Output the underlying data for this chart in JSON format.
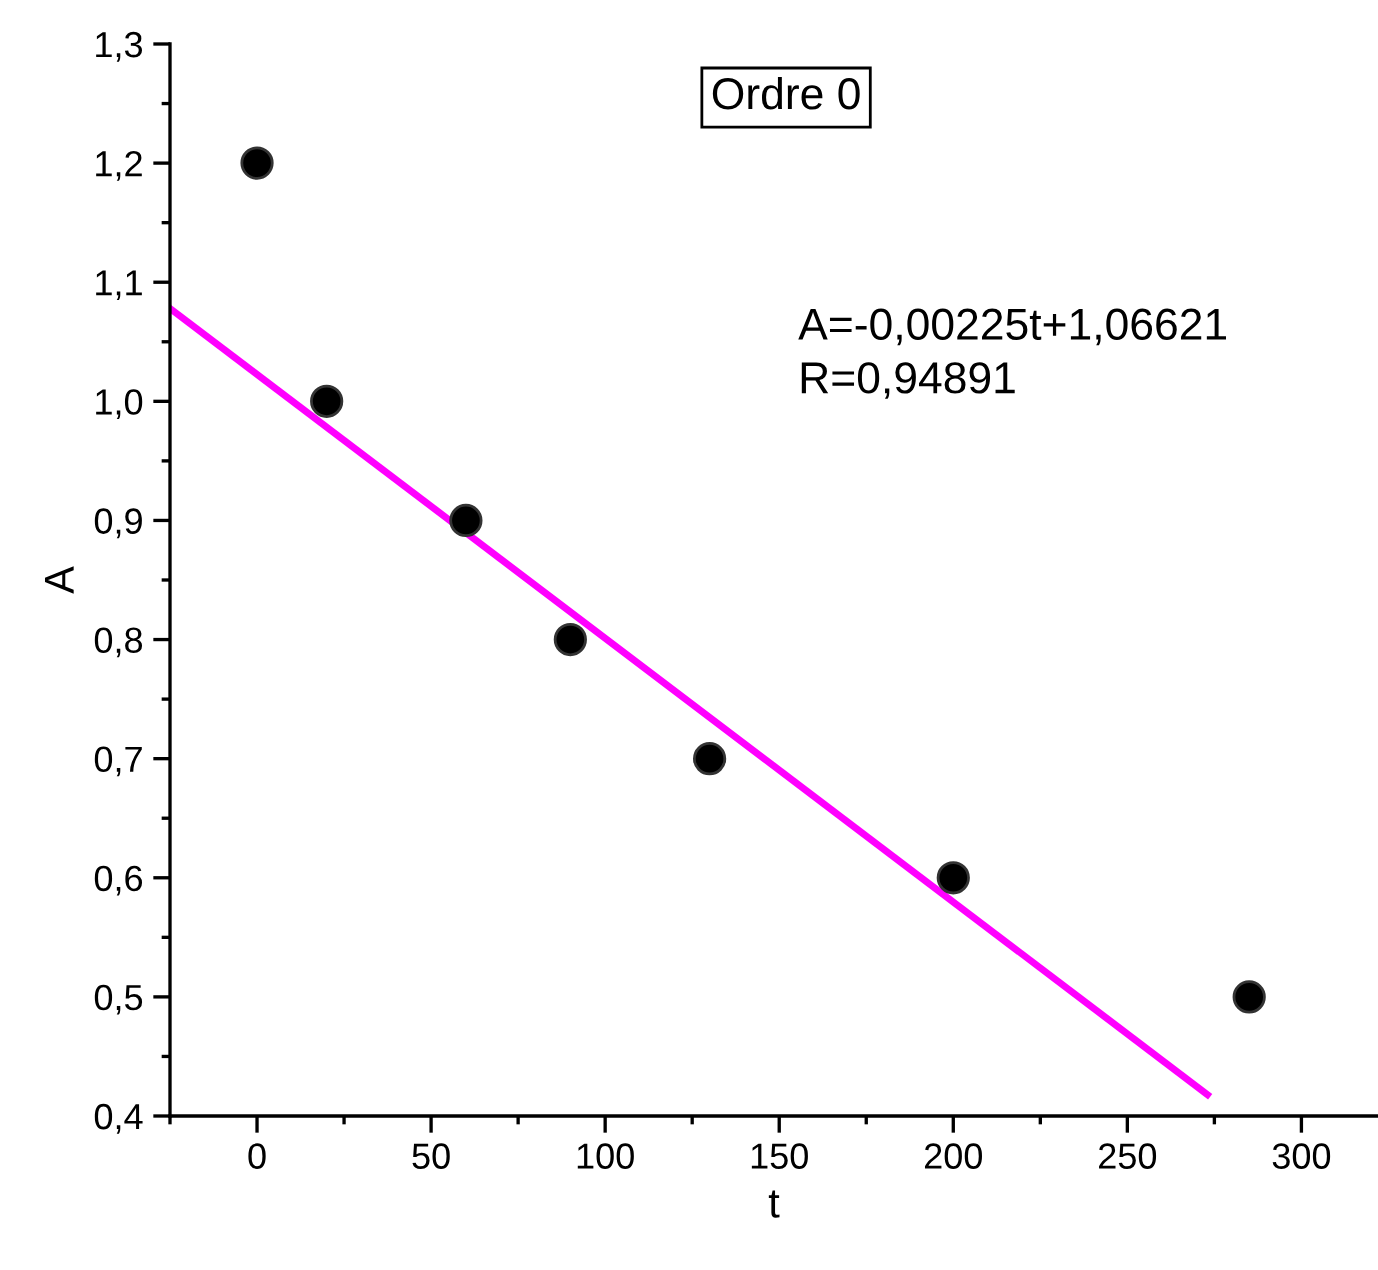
{
  "chart_data": {
    "type": "scatter",
    "xlabel": "t",
    "ylabel": "A",
    "annotations": [
      "Ordre 0",
      "A=-0,00225t+1,06621",
      "R=0,94891"
    ],
    "series": [
      {
        "color": "#000000",
        "marker": "circle",
        "x": [
          0,
          20,
          60,
          90,
          130,
          200,
          285
        ],
        "values": [
          1.2,
          1.0,
          0.9,
          0.8,
          0.7,
          0.6,
          0.5
        ]
      },
      {
        "type": "line",
        "color": "#ff00ff",
        "line_style": "solid",
        "x": [
          -25,
          273
        ],
        "values": [
          1.078,
          0.418
        ]
      }
    ],
    "xlim": [
      -25,
      322
    ],
    "ylim": [
      0.4,
      1.3
    ],
    "xticks": [
      0,
      50,
      100,
      150,
      200,
      250,
      300
    ],
    "yticks": [
      {
        "value": 0.4,
        "label": "0,4"
      },
      {
        "value": 0.5,
        "label": "0,5"
      },
      {
        "value": 0.6,
        "label": "0,6"
      },
      {
        "value": 0.7,
        "label": "0,7"
      },
      {
        "value": 0.8,
        "label": "0,8"
      },
      {
        "value": 0.9,
        "label": "0,9"
      },
      {
        "value": 1.0,
        "label": "1,0"
      },
      {
        "value": 1.1,
        "label": "1,1"
      },
      {
        "value": 1.2,
        "label": "1,2"
      },
      {
        "value": 1.3,
        "label": "1,3"
      }
    ],
    "grid": false,
    "legend": false
  }
}
